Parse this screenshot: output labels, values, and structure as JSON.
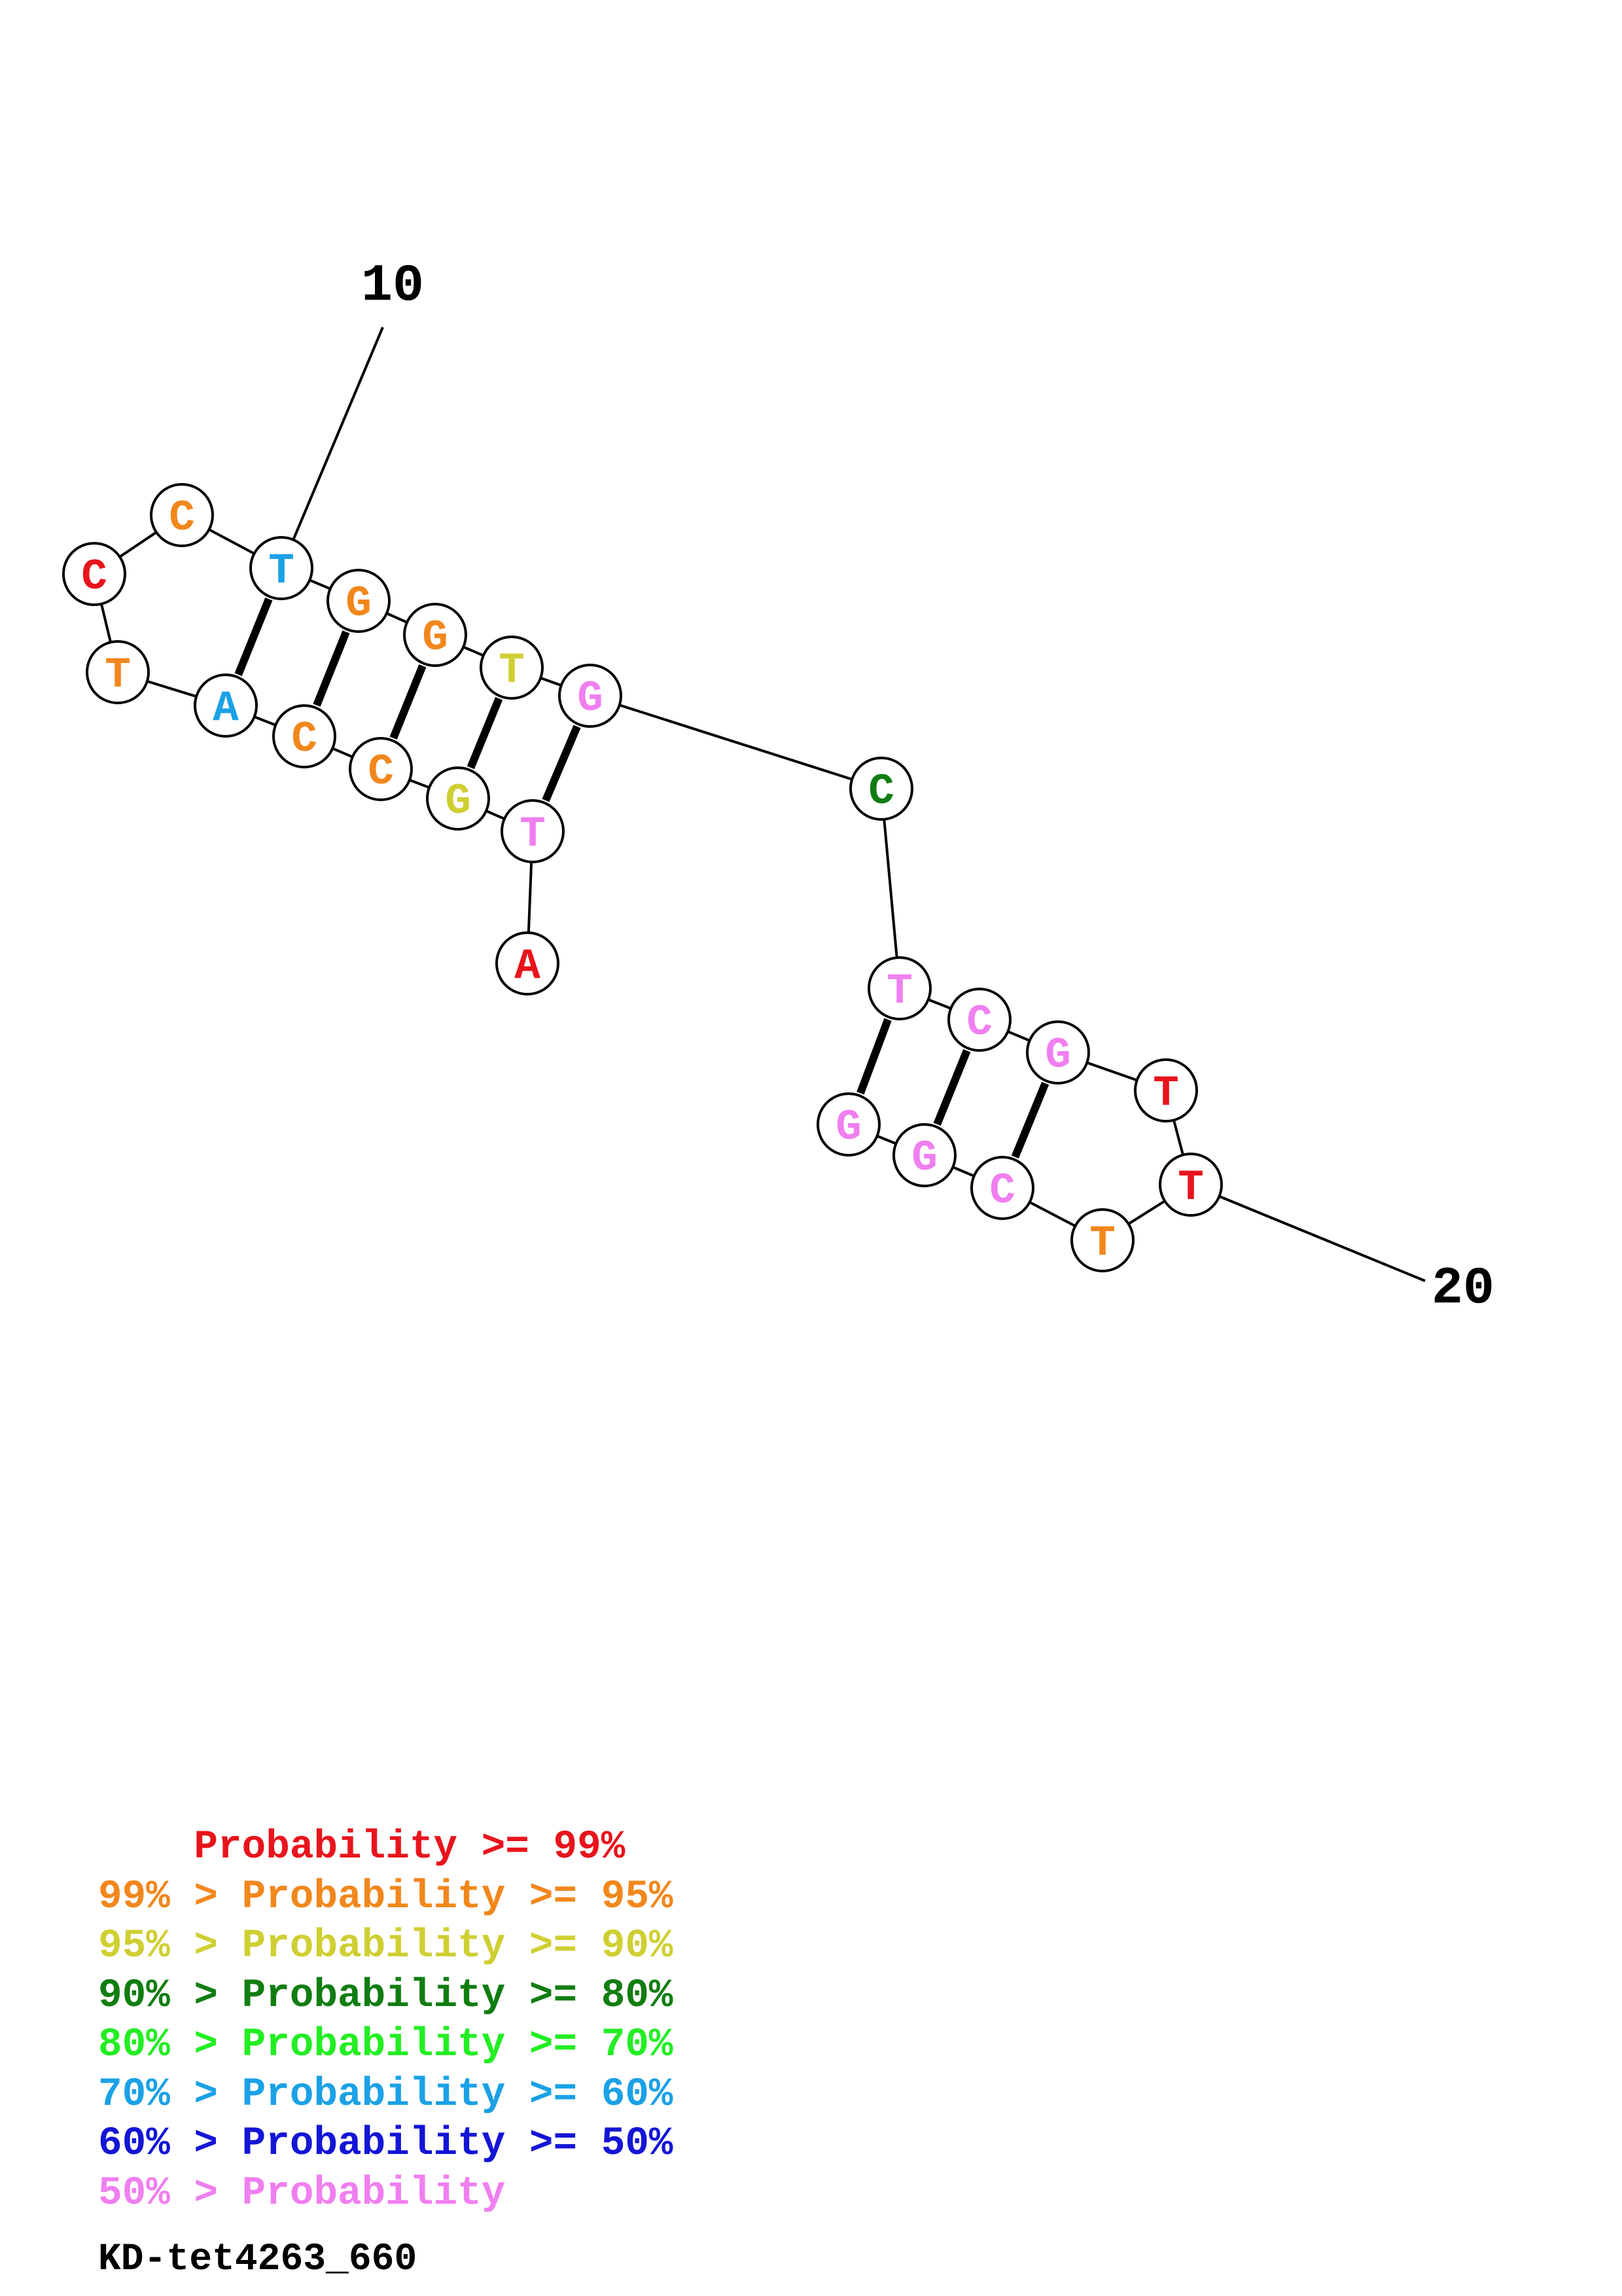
{
  "title": "KD-tet4263_660",
  "palette": {
    "p99": "#e8141c",
    "p95": "#f2871c",
    "p90": "#cfcf33",
    "p80": "#117d11",
    "p70": "#22ee22",
    "p60": "#1aa1e6",
    "p50": "#1414d6",
    "plow": "#f07ff0"
  },
  "position_labels": [
    "10",
    "20"
  ],
  "nucleotides": [
    {
      "index": 1,
      "base": "A",
      "color": "p99"
    },
    {
      "index": 2,
      "base": "T",
      "color": "plow"
    },
    {
      "index": 3,
      "base": "G",
      "color": "p90"
    },
    {
      "index": 4,
      "base": "C",
      "color": "p95"
    },
    {
      "index": 5,
      "base": "C",
      "color": "p95"
    },
    {
      "index": 6,
      "base": "A",
      "color": "p60"
    },
    {
      "index": 7,
      "base": "T",
      "color": "p95"
    },
    {
      "index": 8,
      "base": "C",
      "color": "p99"
    },
    {
      "index": 9,
      "base": "C",
      "color": "p95"
    },
    {
      "index": 10,
      "base": "T",
      "color": "p60"
    },
    {
      "index": 11,
      "base": "G",
      "color": "p95"
    },
    {
      "index": 12,
      "base": "G",
      "color": "p95"
    },
    {
      "index": 13,
      "base": "T",
      "color": "p90"
    },
    {
      "index": 14,
      "base": "G",
      "color": "plow"
    },
    {
      "index": 15,
      "base": "C",
      "color": "p80"
    },
    {
      "index": 16,
      "base": "T",
      "color": "plow"
    },
    {
      "index": 17,
      "base": "C",
      "color": "plow"
    },
    {
      "index": 18,
      "base": "G",
      "color": "plow"
    },
    {
      "index": 19,
      "base": "T",
      "color": "p99"
    },
    {
      "index": 20,
      "base": "T",
      "color": "p99"
    },
    {
      "index": 21,
      "base": "T",
      "color": "p95"
    },
    {
      "index": 22,
      "base": "C",
      "color": "plow"
    },
    {
      "index": 23,
      "base": "G",
      "color": "plow"
    },
    {
      "index": 24,
      "base": "G",
      "color": "plow"
    }
  ],
  "base_pairs": [
    [
      2,
      14
    ],
    [
      3,
      13
    ],
    [
      4,
      12
    ],
    [
      5,
      11
    ],
    [
      6,
      10
    ],
    [
      16,
      24
    ],
    [
      17,
      23
    ],
    [
      18,
      22
    ]
  ],
  "legend": [
    {
      "text": "    Probability >= 99%",
      "color": "p99"
    },
    {
      "text": "99% > Probability >= 95%",
      "color": "p95"
    },
    {
      "text": "95% > Probability >= 90%",
      "color": "p90"
    },
    {
      "text": "90% > Probability >= 80%",
      "color": "p80"
    },
    {
      "text": "80% > Probability >= 70%",
      "color": "p70"
    },
    {
      "text": "70% > Probability >= 60%",
      "color": "p60"
    },
    {
      "text": "60% > Probability >= 50%",
      "color": "p50"
    },
    {
      "text": "50% > Probability",
      "color": "plow"
    }
  ]
}
